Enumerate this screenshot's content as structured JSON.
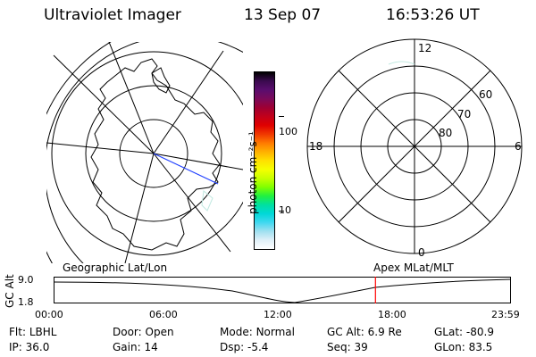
{
  "header": {
    "instrument": "Ultraviolet Imager",
    "date": "13 Sep 07",
    "time": "16:53:26 UT"
  },
  "colorbar": {
    "unit_label": "photon cm⁻²s⁻¹",
    "ticks": [
      "100",
      "10"
    ],
    "colors": [
      "#000000",
      "#3b0a4f",
      "#5a0d6e",
      "#7a0a5a",
      "#9e0033",
      "#c2001a",
      "#e00000",
      "#f03800",
      "#ff7a00",
      "#ffb000",
      "#ffe000",
      "#f5ff00",
      "#c8ff00",
      "#80ff00",
      "#20f040",
      "#00e0a0",
      "#00d8d8",
      "#40d8f0",
      "#a0e0f0",
      "#e0f0f8",
      "#ffffff"
    ]
  },
  "left_panel": {
    "title": "Geographic Lat/Lon"
  },
  "right_panel": {
    "title": "Apex MLat/MLT",
    "mlt_labels": {
      "top": "12",
      "left": "18",
      "right": "6",
      "bottom": "0"
    },
    "lat_labels": [
      "60",
      "70",
      "80"
    ]
  },
  "timeline": {
    "axis_label": "GC Alt",
    "y_ticks": [
      "9.0",
      "1.8"
    ],
    "x_ticks": [
      "00:00",
      "06:00",
      "12:00",
      "18:00",
      "23:59"
    ],
    "current_marker_color": "#ff0000",
    "current_time_fraction": 0.7037
  },
  "info": {
    "filt_label": "Flt:",
    "filt_value": "LBHL",
    "ip_label": "IP:",
    "ip_value": "36.0",
    "door_label": "Door:",
    "door_value": "Open",
    "gain_label": "Gain:",
    "gain_value": "14",
    "mode_label": "Mode:",
    "mode_value": "Normal",
    "dsp_label": "Dsp:",
    "dsp_value": "-5.4",
    "gcalt_label": "GC Alt:",
    "gcalt_value": "6.9 Re",
    "seq_label": "Seq:",
    "seq_value": "39",
    "glat_label": "GLat:",
    "glat_value": "-80.9",
    "glon_label": "GLon:",
    "glon_value": "83.5"
  }
}
